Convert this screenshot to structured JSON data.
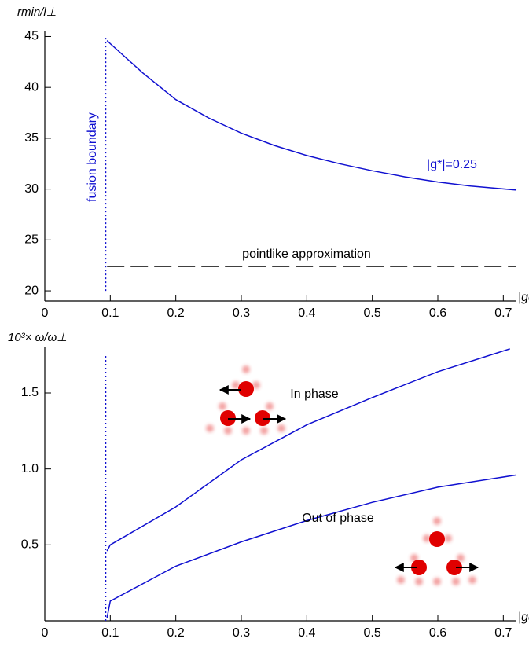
{
  "chart_data": [
    {
      "type": "line",
      "ylabel": "rmin/l⊥",
      "xlabel": "|gd*|",
      "xlim": [
        0,
        0.72
      ],
      "ylim": [
        19,
        45.5
      ],
      "xticks": [
        0,
        0.1,
        0.2,
        0.3,
        0.4,
        0.5,
        0.6,
        0.7
      ],
      "yticks": [
        20,
        25,
        30,
        35,
        40,
        45
      ],
      "series": [
        {
          "name": "|g*|=0.25",
          "color": "#1010d0",
          "linestyle": "solid",
          "x": [
            0.095,
            0.1,
            0.15,
            0.2,
            0.25,
            0.3,
            0.35,
            0.4,
            0.45,
            0.5,
            0.55,
            0.6,
            0.65,
            0.72
          ],
          "values": [
            44.6,
            44.3,
            41.4,
            38.8,
            37,
            35.5,
            34.3,
            33.3,
            32.5,
            31.8,
            31.2,
            30.7,
            30.3,
            29.9
          ]
        },
        {
          "name": "pointlike approximation",
          "color": "#000000",
          "linestyle": "dashed",
          "x": [
            0.095,
            0.72
          ],
          "values": [
            22.4,
            22.4
          ]
        },
        {
          "name": "fusion boundary",
          "color": "#1010d0",
          "linestyle": "dotted",
          "x": [
            0.093,
            0.093
          ],
          "values": [
            20,
            45
          ]
        }
      ]
    },
    {
      "type": "line",
      "ylabel": "10³× ω/ω⊥",
      "xlabel": "|gd*|",
      "xlim": [
        0,
        0.72
      ],
      "ylim": [
        0,
        1.8
      ],
      "xticks": [
        0,
        0.1,
        0.2,
        0.3,
        0.4,
        0.5,
        0.6,
        0.7
      ],
      "yticks": [
        0.5,
        {
          "value": 1,
          "label": "1.0"
        },
        1.5
      ],
      "series": [
        {
          "name": "In phase",
          "color": "#1010d0",
          "linestyle": "solid",
          "x": [
            0.095,
            0.1,
            0.2,
            0.3,
            0.4,
            0.5,
            0.6,
            0.71
          ],
          "values": [
            0.46,
            0.5,
            0.75,
            1.06,
            1.29,
            1.47,
            1.64,
            1.79
          ]
        },
        {
          "name": "Out of phase",
          "color": "#1010d0",
          "linestyle": "solid",
          "x": [
            0.095,
            0.1,
            0.2,
            0.3,
            0.4,
            0.5,
            0.6,
            0.72
          ],
          "values": [
            0.02,
            0.13,
            0.36,
            0.52,
            0.66,
            0.78,
            0.88,
            0.96
          ]
        },
        {
          "color": "#1010d0",
          "linestyle": "dotted",
          "x": [
            0.093,
            0.093
          ],
          "values": [
            0,
            1.75
          ]
        }
      ]
    }
  ]
}
